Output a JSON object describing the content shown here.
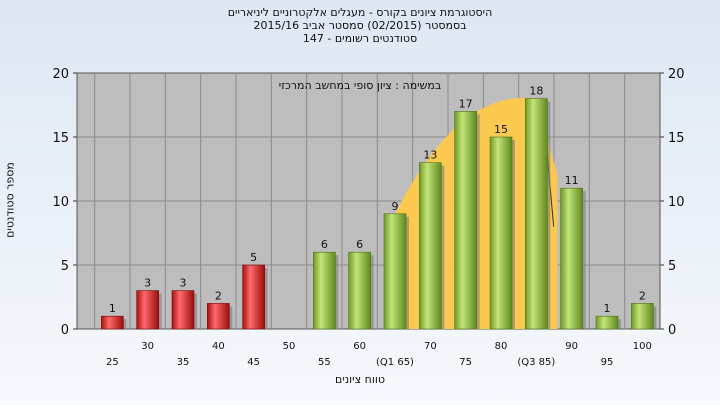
{
  "title": {
    "line1": "היסטוגרמת ציונים בקורס - מעגלים אלקטרוניים ליניאריים",
    "line2": "בסמסטר  (02/2015)  סמסטר אביב 2015/16",
    "line3": "סטודנטים רשומים - 147"
  },
  "colors": {
    "low": "#d42020",
    "high": "#8dbf3a",
    "curve": "#ffc94a",
    "plot_bg": "#bdbdbd"
  },
  "chart_data": {
    "type": "bar",
    "annotation": "במשימה : ציון סופי במחשב המרכזי",
    "xlabel": "טווח ציונים",
    "ylabel": "מספר סטודנטים",
    "ylim": [
      0,
      20
    ],
    "yticks": [
      0,
      5,
      10,
      15,
      20
    ],
    "grid": true,
    "categories": [
      "25",
      "30",
      "35",
      "40",
      "45",
      "50",
      "55",
      "60",
      "65",
      "70",
      "75",
      "80",
      "85",
      "90",
      "95",
      "100"
    ],
    "tick_labels": [
      "25",
      "30",
      "35",
      "40",
      "45",
      "50",
      "55",
      "60",
      "(Q1 65)",
      "70",
      "75",
      "80",
      "(Q3 85)",
      "90",
      "95",
      "100"
    ],
    "values": [
      1,
      3,
      3,
      2,
      5,
      null,
      6,
      6,
      9,
      13,
      17,
      15,
      18,
      11,
      1,
      2
    ],
    "fail_threshold": 50,
    "quartile_band": {
      "from": "65",
      "to": "85"
    }
  }
}
